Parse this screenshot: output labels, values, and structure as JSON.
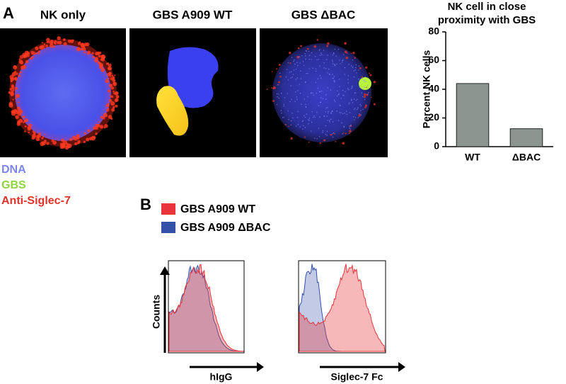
{
  "panel_a": {
    "label": "A",
    "images": [
      "NK only",
      "GBS A909 WT",
      "GBS ΔBAC"
    ],
    "legend": [
      "DNA",
      "GBS",
      "Anti-Siglec-7"
    ]
  },
  "chart_data": {
    "type": "bar",
    "title": "NK cell in close proximity with GBS",
    "ylabel": "Percent NK cells",
    "categories": [
      "WT",
      "ΔBAC"
    ],
    "values": [
      44,
      12.5
    ],
    "color": "#8c9590",
    "ylim": [
      0,
      80
    ],
    "yticks": [
      0,
      20,
      40,
      60,
      80
    ]
  },
  "panel_b": {
    "label": "B",
    "ylabel": "Counts",
    "legend": [
      {
        "name": "GBS A909 WT",
        "color": "#e8343a"
      },
      {
        "name": "GBS A909 ΔBAC",
        "color": "#3550a8"
      }
    ],
    "plots": [
      {
        "xlabel": "hIgG"
      },
      {
        "xlabel": "Siglec-7 Fc"
      }
    ]
  }
}
